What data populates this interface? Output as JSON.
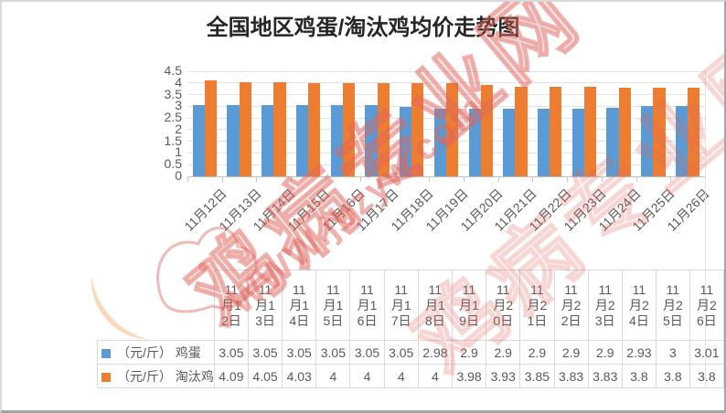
{
  "watermark": {
    "site_name": "鸡病专业网",
    "site_url": "WWW.jbzyw.com"
  },
  "colors": {
    "egg_series": "#5B9BD5",
    "culled_chicken_series": "#ED7D31",
    "gridline": "#E3E3E3",
    "axis_line": "#BFBFBF",
    "axis_text": "#595959",
    "table_border": "#D9D9D9",
    "title_text": "#262626",
    "watermark_red": "#E0665D",
    "watermark_orange": "#F5B97F"
  },
  "chart_data": {
    "type": "bar",
    "title": "全国地区鸡蛋/淘汰鸡均价走势图",
    "xlabel": "",
    "ylabel": "",
    "ylim": [
      0,
      4.5
    ],
    "ytick_step": 0.5,
    "grid": true,
    "legend_position": "data-table-left",
    "data_table": true,
    "categories": [
      "11月12日",
      "11月13日",
      "11月14日",
      "11月15日",
      "11月16日",
      "11月17日",
      "11月18日",
      "11月19日",
      "11月20日",
      "11月21日",
      "11月22日",
      "11月23日",
      "11月24日",
      "11月25日",
      "11月26日"
    ],
    "series": [
      {
        "key": "egg",
        "name": "（元/斤） 鸡蛋",
        "color": "#5B9BD5",
        "values": [
          3.05,
          3.05,
          3.05,
          3.05,
          3.05,
          3.05,
          2.98,
          2.9,
          2.9,
          2.9,
          2.9,
          2.9,
          2.93,
          3,
          3.01
        ]
      },
      {
        "key": "culled-chicken",
        "name": "（元/斤） 淘汰鸡",
        "color": "#ED7D31",
        "values": [
          4.09,
          4.05,
          4.03,
          4,
          4,
          4,
          4,
          3.98,
          3.93,
          3.85,
          3.83,
          3.83,
          3.8,
          3.8,
          3.8
        ]
      }
    ]
  }
}
